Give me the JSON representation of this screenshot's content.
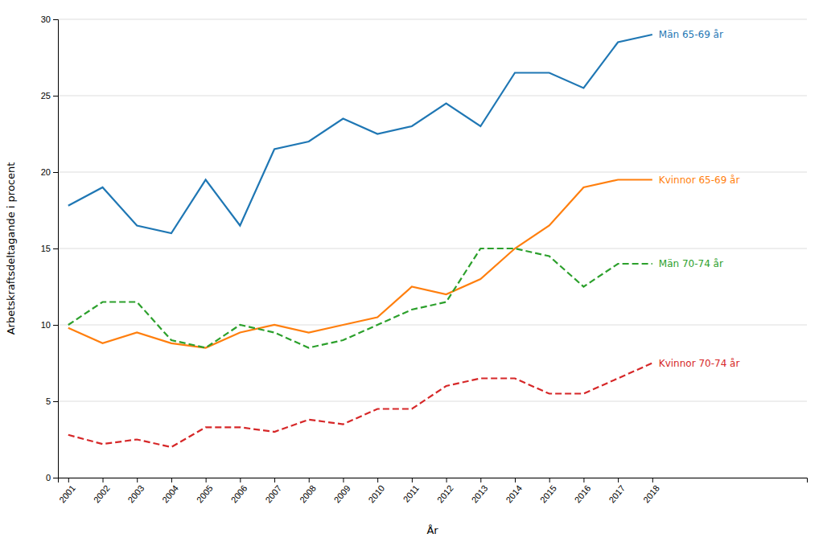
{
  "chart_data": {
    "type": "line",
    "xlabel": "År",
    "ylabel": "Arbetskraftsdeltagande i procent",
    "x": [
      2001,
      2002,
      2003,
      2004,
      2005,
      2006,
      2007,
      2008,
      2009,
      2010,
      2011,
      2012,
      2013,
      2014,
      2015,
      2016,
      2017,
      2018
    ],
    "xlim": [
      2000.7,
      2022.5
    ],
    "xticks": [
      2001,
      2002,
      2003,
      2004,
      2005,
      2006,
      2007,
      2008,
      2009,
      2010,
      2011,
      2012,
      2013,
      2014,
      2015,
      2016,
      2017,
      2018
    ],
    "ylim": [
      0,
      30
    ],
    "yticks": [
      0,
      5,
      10,
      15,
      20,
      25,
      30
    ],
    "grid": true,
    "series": [
      {
        "name": "Män 65-69 år",
        "line_style": "solid",
        "values": [
          17.8,
          19.0,
          16.5,
          16.0,
          19.5,
          16.5,
          21.5,
          22.0,
          23.5,
          22.5,
          23.0,
          24.5,
          23.0,
          26.5,
          26.5,
          25.5,
          28.5,
          29.0
        ]
      },
      {
        "name": "Kvinnor 65-69 år",
        "line_style": "solid",
        "values": [
          9.8,
          8.8,
          9.5,
          8.8,
          8.5,
          9.5,
          10.0,
          9.5,
          10.0,
          10.5,
          12.5,
          12.0,
          13.0,
          15.0,
          16.5,
          19.0,
          19.5,
          19.5
        ]
      },
      {
        "name": "Män 70-74 år",
        "line_style": "dashed",
        "values": [
          10.0,
          11.5,
          11.5,
          9.0,
          8.5,
          10.0,
          9.5,
          8.5,
          9.0,
          10.0,
          11.0,
          11.5,
          15.0,
          15.0,
          14.5,
          12.5,
          14.0,
          14.0
        ]
      },
      {
        "name": "Kvinnor 70-74 år",
        "line_style": "dashed",
        "values": [
          2.8,
          2.2,
          2.5,
          2.0,
          3.3,
          3.3,
          3.0,
          3.8,
          3.5,
          4.5,
          4.5,
          6.0,
          6.5,
          6.5,
          5.5,
          5.5,
          6.5,
          7.5
        ]
      }
    ]
  }
}
